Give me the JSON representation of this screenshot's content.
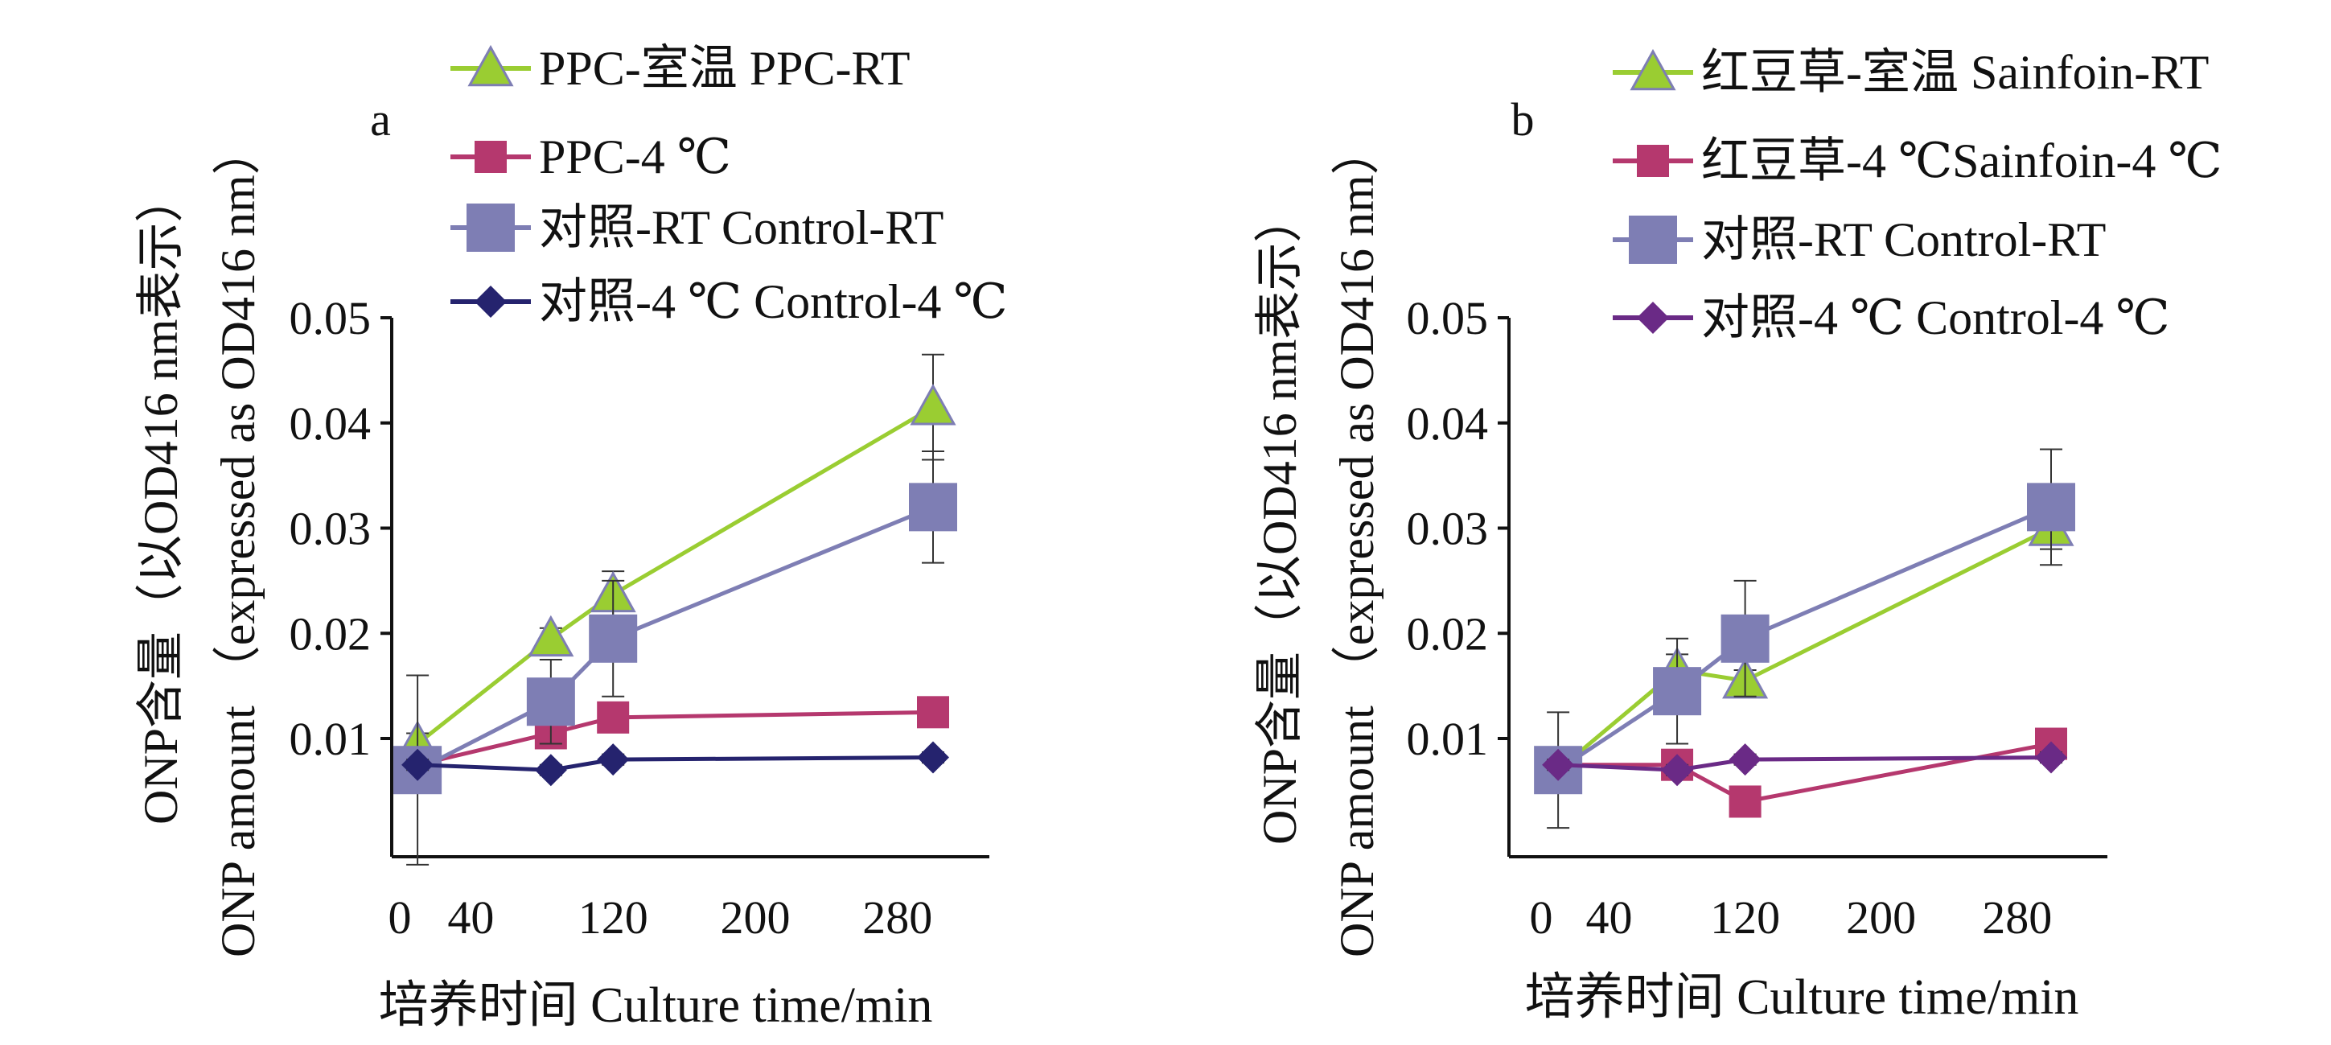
{
  "chart_data": [
    {
      "type": "line",
      "panel_label": "a",
      "xlabel": "培养时间 Culture time/min",
      "ylabel_cn": "ONP含量（以OD416 nm表示）",
      "ylabel_en": "ONP amount （expressed as OD416 nm）",
      "x_ticks": [
        "0",
        "40",
        "120",
        "200",
        "280"
      ],
      "y_ticks": [
        "0.01",
        "0.02",
        "0.03",
        "0.04",
        "0.05"
      ],
      "xlim": [
        0,
        320
      ],
      "ylim": [
        0,
        0.05
      ],
      "legend_position": "top",
      "series": [
        {
          "name": "PPC-室温  PPC-RT",
          "color": "#9acd32",
          "marker": "triangle",
          "x": [
            10,
            85,
            120,
            300
          ],
          "y": [
            0.0095,
            0.0195,
            0.0237,
            0.0415
          ],
          "err": [
            0.001,
            0.001,
            0.0022,
            0.005
          ]
        },
        {
          "name": "PPC-4 ℃",
          "color": "#b5386e",
          "marker": "square-small",
          "x": [
            10,
            85,
            120,
            300
          ],
          "y": [
            0.0075,
            0.0105,
            0.012,
            0.0125
          ],
          "err": [
            0.001,
            0.0008,
            0.001,
            0.0008
          ]
        },
        {
          "name": "对照-RT Control-RT",
          "color": "#7e7eb4",
          "marker": "square-large",
          "x": [
            10,
            85,
            120,
            300
          ],
          "y": [
            0.007,
            0.0135,
            0.0195,
            0.032
          ],
          "err": [
            0.009,
            0.004,
            0.0055,
            0.0053
          ]
        },
        {
          "name": "对照-4 ℃ Control-4 ℃",
          "color": "#25236e",
          "marker": "diamond",
          "x": [
            10,
            85,
            120,
            300
          ],
          "y": [
            0.0075,
            0.007,
            0.008,
            0.0082
          ],
          "err": [
            0.0005,
            0.0005,
            0.0005,
            0.0005
          ]
        }
      ]
    },
    {
      "type": "line",
      "panel_label": "b",
      "xlabel": "培养时间 Culture time/min",
      "ylabel_cn": "ONP含量（以OD416 nm表示）",
      "ylabel_en": "ONP amount （expressed as OD416 nm）",
      "x_ticks": [
        "0",
        "40",
        "120",
        "200",
        "280"
      ],
      "y_ticks": [
        "0.01",
        "0.02",
        "0.03",
        "0.04",
        "0.05"
      ],
      "xlim": [
        0,
        320
      ],
      "ylim": [
        0,
        0.05
      ],
      "legend_position": "top",
      "series": [
        {
          "name": "红豆草-室温 Sainfoin-RT",
          "color": "#9acd32",
          "marker": "triangle",
          "x": [
            10,
            80,
            120,
            300
          ],
          "y": [
            0.007,
            0.0165,
            0.0155,
            0.03
          ],
          "err": [
            0.001,
            0.0015,
            0.001,
            0.002
          ]
        },
        {
          "name": "红豆草-4 ℃Sainfoin-4 ℃",
          "color": "#b5386e",
          "marker": "square-small",
          "x": [
            10,
            80,
            120,
            300
          ],
          "y": [
            0.0075,
            0.0075,
            0.004,
            0.0095
          ],
          "err": [
            0.001,
            0.0008,
            0.001,
            0.0008
          ]
        },
        {
          "name": "对照-RT Control-RT",
          "color": "#7e7eb4",
          "marker": "square-large",
          "x": [
            10,
            80,
            120,
            300
          ],
          "y": [
            0.007,
            0.0145,
            0.0195,
            0.032
          ],
          "err": [
            0.0055,
            0.005,
            0.0055,
            0.0055
          ]
        },
        {
          "name": "对照-4 ℃ Control-4 ℃",
          "color": "#6a2a86",
          "marker": "diamond",
          "x": [
            10,
            80,
            120,
            300
          ],
          "y": [
            0.0075,
            0.007,
            0.008,
            0.0082
          ],
          "err": [
            0.0005,
            0.0005,
            0.0005,
            0.0005
          ]
        }
      ]
    }
  ]
}
